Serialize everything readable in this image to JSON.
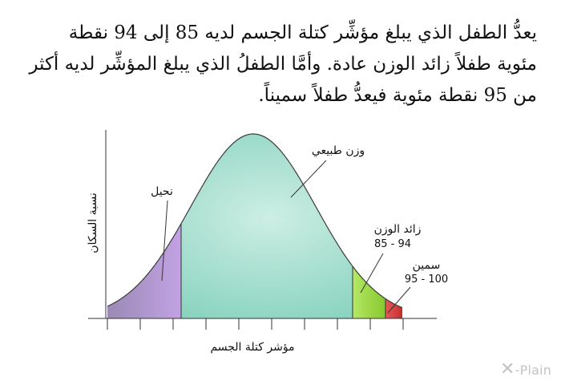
{
  "paragraph": "يعدُّ الطفل الذي يبلغ مؤشِّر كتلة الجسم لديه 85 إلى 94 نقطة مئوية طفلاً زائد الوزن عادة. وأمَّا الطفلُ الذي يبلغ المؤشِّر لديه أكثر من 95 نقطة مئوية فيعدُّ طفلاً سميناً.",
  "diagram": {
    "x_axis_label": "مؤشر كتلة الجسم",
    "y_axis_label": "نسبة السكان",
    "regions": {
      "underweight": {
        "label": "نحيل",
        "color": "#b59cd9"
      },
      "normal": {
        "label": "وزن طبيعي",
        "color": "#8fd6c4"
      },
      "overweight": {
        "label": "زائد الوزن",
        "range": "85 - 94",
        "color": "#a9e04d"
      },
      "obese": {
        "label": "سمين",
        "range": "95 - 100",
        "color": "#e84a4a"
      }
    }
  },
  "watermark": {
    "brand": "X-Plain",
    "icon": "x-plain-logo-icon"
  }
}
